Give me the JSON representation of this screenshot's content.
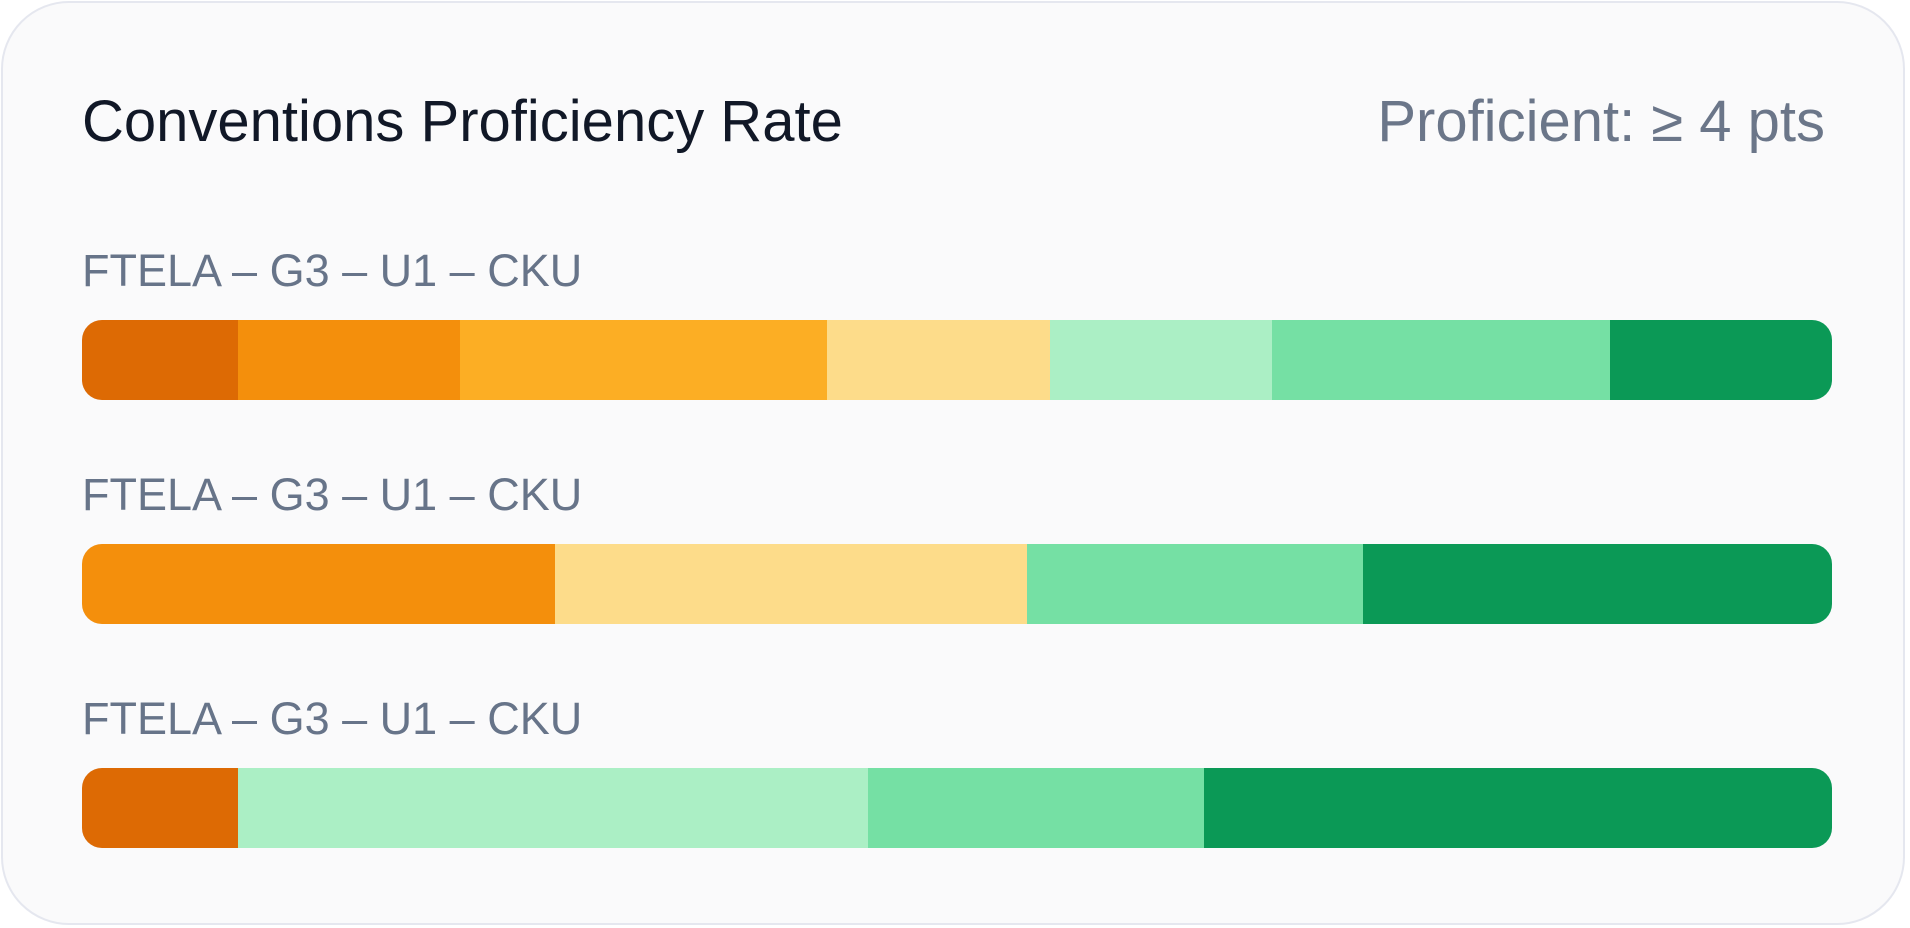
{
  "chart_data": {
    "type": "bar",
    "orientation": "horizontal",
    "stacked": "100%",
    "title": "Conventions Proficiency Rate",
    "subtitle": "Proficient: ≥ 4 pts",
    "rows": [
      {
        "label": "FTELA – G3 – U1 – CKU",
        "segments": [
          {
            "value": 8.9,
            "color": "#dd6a04"
          },
          {
            "value": 12.7,
            "color": "#f48f0c"
          },
          {
            "value": 21.0,
            "color": "#fcae24"
          },
          {
            "value": 12.7,
            "color": "#fddc8a"
          },
          {
            "value": 12.7,
            "color": "#abefc5"
          },
          {
            "value": 19.3,
            "color": "#75e0a4"
          },
          {
            "value": 12.7,
            "color": "#0b9956"
          }
        ]
      },
      {
        "label": "FTELA – G3 – U1 – CKU",
        "segments": [
          {
            "value": 27.0,
            "color": "#f48f0c"
          },
          {
            "value": 27.0,
            "color": "#fddc8a"
          },
          {
            "value": 19.2,
            "color": "#75e0a4"
          },
          {
            "value": 26.8,
            "color": "#0b9956"
          }
        ]
      },
      {
        "label": "FTELA – G3 – U1 – CKU",
        "segments": [
          {
            "value": 8.9,
            "color": "#dd6a04"
          },
          {
            "value": 36.0,
            "color": "#abefc5"
          },
          {
            "value": 19.2,
            "color": "#75e0a4"
          },
          {
            "value": 35.9,
            "color": "#0b9956"
          }
        ]
      }
    ]
  }
}
